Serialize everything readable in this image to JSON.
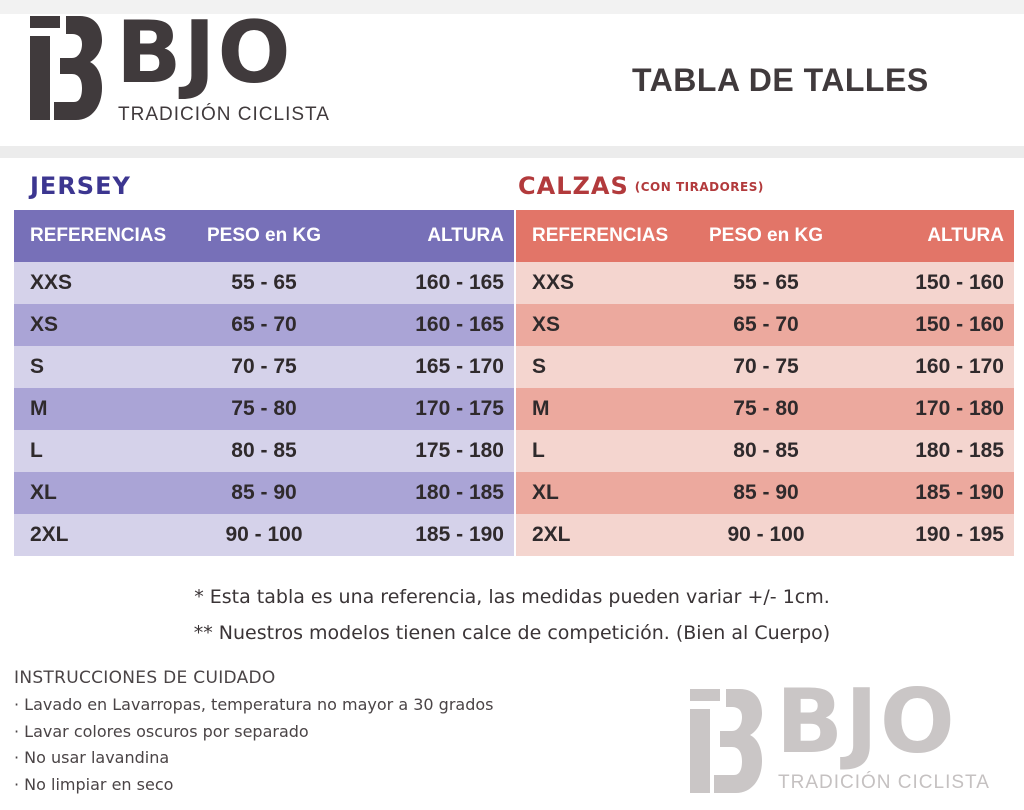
{
  "brand": {
    "name": "BJO",
    "tagline": "TRADICIÓN CICLISTA",
    "colors": {
      "dark": "#403a3c",
      "watermark": "#cac6c6"
    }
  },
  "page_title": "TABLA DE TALLES",
  "jersey": {
    "title": "JERSEY",
    "accent": "#7770b8",
    "headers": [
      "REFERENCIAS",
      "PESO en KG",
      "ALTURA"
    ],
    "rows": [
      [
        "XXS",
        "55 - 65",
        "160 - 165"
      ],
      [
        "XS",
        "65 - 70",
        "160 - 165"
      ],
      [
        "S",
        "70 - 75",
        "165 - 170"
      ],
      [
        "M",
        "75 - 80",
        "170 - 175"
      ],
      [
        "L",
        "80 - 85",
        "175 - 180"
      ],
      [
        "XL",
        "85 - 90",
        "180 - 185"
      ],
      [
        "2XL",
        "90 - 100",
        "185 - 190"
      ]
    ]
  },
  "calzas": {
    "title": "CALZAS",
    "subtitle": "(CON TIRADORES)",
    "accent": "#e27568",
    "headers": [
      "REFERENCIAS",
      "PESO en KG",
      "ALTURA"
    ],
    "rows": [
      [
        "XXS",
        "55 - 65",
        "150 - 160"
      ],
      [
        "XS",
        "65 - 70",
        "150 - 160"
      ],
      [
        "S",
        "70 - 75",
        "160 - 170"
      ],
      [
        "M",
        "75 - 80",
        "170 - 180"
      ],
      [
        "L",
        "80 - 85",
        "180 - 185"
      ],
      [
        "XL",
        "85 - 90",
        "185 - 190"
      ],
      [
        "2XL",
        "90 - 100",
        "190 - 195"
      ]
    ]
  },
  "notes": [
    "* Esta tabla es una referencia, las medidas pueden variar +/- 1cm.",
    "** Nuestros modelos tienen calce de competición. (Bien al Cuerpo)"
  ],
  "care": {
    "title": "INSTRUCCIONES DE CUIDADO",
    "items": [
      "· Lavado en Lavarropas, temperatura no mayor a 30 grados",
      "· Lavar colores oscuros por separado",
      "· No usar lavandina",
      "· No limpiar en seco"
    ]
  }
}
